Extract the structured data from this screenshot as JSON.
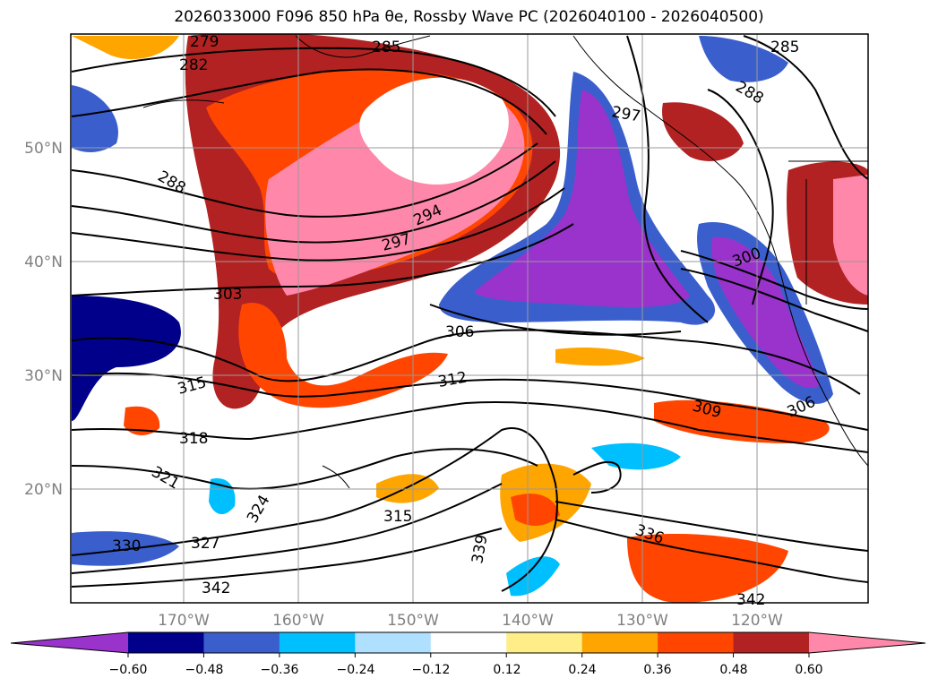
{
  "title": "2026033000 F096 850 hPa θe, Rossby Wave PC (2026040100 - 2026040500)",
  "lat_labels": [
    "50°N",
    "40°N",
    "30°N",
    "20°N"
  ],
  "lon_labels": [
    "170°W",
    "160°W",
    "150°W",
    "140°W",
    "130°W",
    "120°W"
  ],
  "contour_labels": [
    "279",
    "282",
    "285",
    "288",
    "294",
    "297",
    "303",
    "306",
    "312",
    "315",
    "318",
    "321",
    "324",
    "327",
    "330",
    "336",
    "339",
    "342",
    "300",
    "309",
    "285",
    "288",
    "315",
    "342",
    "297",
    "306"
  ],
  "colorbar": {
    "colors": [
      "#9933cc",
      "#00008b",
      "#3a5fcd",
      "#00bfff",
      "#b0e0ff",
      "#ffffff",
      "#ffee88",
      "#ffa500",
      "#ff4500",
      "#b22222",
      "#ff88aa"
    ],
    "tick_labels": [
      "−0.60",
      "−0.48",
      "−0.36",
      "−0.24",
      "−0.12",
      "0.12",
      "0.24",
      "0.36",
      "0.48",
      "0.60"
    ],
    "extend": "both"
  }
}
